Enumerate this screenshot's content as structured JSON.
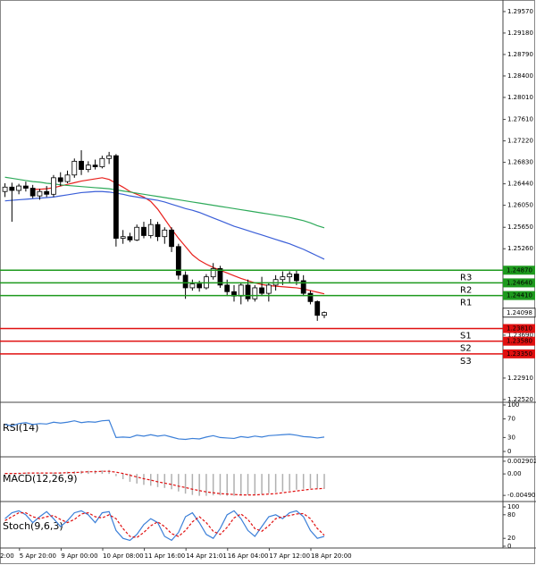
{
  "chart_data": [
    {
      "type": "candlestick",
      "ylim": [
        1.2247,
        1.2978
      ],
      "yticks": [
        {
          "value": 1.2957,
          "label": "1.29570"
        },
        {
          "value": 1.2918,
          "label": "1.29180"
        },
        {
          "value": 1.2879,
          "label": "1.28790"
        },
        {
          "value": 1.284,
          "label": "1.28400"
        },
        {
          "value": 1.2801,
          "label": "1.28010"
        },
        {
          "value": 1.2761,
          "label": "1.27610"
        },
        {
          "value": 1.2722,
          "label": "1.27220"
        },
        {
          "value": 1.2683,
          "label": "1.26830"
        },
        {
          "value": 1.2644,
          "label": "1.26440"
        },
        {
          "value": 1.2605,
          "label": "1.26050"
        },
        {
          "value": 1.2565,
          "label": "1.25650"
        },
        {
          "value": 1.2526,
          "label": "1.25260"
        },
        {
          "value": 1.2369,
          "label": "1.23690"
        },
        {
          "value": 1.2291,
          "label": "1.22910"
        },
        {
          "value": 1.2252,
          "label": "1.22520"
        }
      ],
      "x_labels": [
        "2:00",
        "5 Apr 20:00",
        "9 Apr 00:00",
        "10 Apr 08:00",
        "11 Apr 16:00",
        "14 Apr 21:01",
        "16 Apr 04:00",
        "17 Apr 12:00",
        "18 Apr 20:00"
      ],
      "open": [
        1.263,
        1.2638,
        1.2632,
        1.264,
        1.2636,
        1.2622,
        1.263,
        1.2625,
        1.2655,
        1.2648,
        1.266,
        1.2685,
        1.267,
        1.2678,
        1.2675,
        1.269,
        1.2695,
        1.2545,
        1.2548,
        1.2542,
        1.2565,
        1.255,
        1.257,
        1.2548,
        1.256,
        1.253,
        1.2478,
        1.2455,
        1.2462,
        1.2455,
        1.2475,
        1.249,
        1.246,
        1.2448,
        1.244,
        1.246,
        1.2435,
        1.2455,
        1.2445,
        1.246,
        1.247,
        1.2475,
        1.248,
        1.2468,
        1.2445,
        1.243,
        1.2405
      ],
      "high": [
        1.2645,
        1.2646,
        1.2644,
        1.2648,
        1.2642,
        1.2635,
        1.264,
        1.266,
        1.2665,
        1.2668,
        1.269,
        1.2705,
        1.2685,
        1.2688,
        1.2695,
        1.2702,
        1.2698,
        1.256,
        1.2555,
        1.257,
        1.2575,
        1.258,
        1.2575,
        1.2565,
        1.2565,
        1.2535,
        1.2485,
        1.247,
        1.2468,
        1.248,
        1.25,
        1.2495,
        1.247,
        1.246,
        1.2465,
        1.247,
        1.246,
        1.2475,
        1.2465,
        1.2478,
        1.2485,
        1.2485,
        1.2488,
        1.2478,
        1.245,
        1.2432,
        1.2412
      ],
      "low": [
        1.262,
        1.2575,
        1.2625,
        1.263,
        1.2618,
        1.2615,
        1.262,
        1.262,
        1.264,
        1.2645,
        1.2655,
        1.266,
        1.2665,
        1.267,
        1.2672,
        1.268,
        1.253,
        1.2535,
        1.2538,
        1.254,
        1.2545,
        1.2545,
        1.254,
        1.2535,
        1.252,
        1.247,
        1.2435,
        1.245,
        1.2448,
        1.2452,
        1.247,
        1.2455,
        1.244,
        1.243,
        1.2425,
        1.243,
        1.243,
        1.244,
        1.243,
        1.245,
        1.246,
        1.2465,
        1.246,
        1.244,
        1.2425,
        1.2395,
        1.24
      ],
      "close": [
        1.2638,
        1.2632,
        1.264,
        1.2636,
        1.2622,
        1.263,
        1.2625,
        1.2655,
        1.2648,
        1.266,
        1.2685,
        1.267,
        1.2678,
        1.2675,
        1.269,
        1.2695,
        1.2545,
        1.2548,
        1.2542,
        1.2565,
        1.255,
        1.257,
        1.2548,
        1.256,
        1.253,
        1.2478,
        1.2455,
        1.2462,
        1.2455,
        1.2475,
        1.249,
        1.246,
        1.2448,
        1.244,
        1.246,
        1.2435,
        1.2455,
        1.2445,
        1.246,
        1.247,
        1.2475,
        1.248,
        1.2468,
        1.2445,
        1.243,
        1.2405,
        1.241
      ],
      "up_color": "#ffffff",
      "down_color": "#000000",
      "series": [
        {
          "color": "#e8201c",
          "values": [
            null,
            null,
            null,
            null,
            1.2634,
            1.2634,
            1.2635,
            1.2637,
            1.264,
            1.2643,
            1.2646,
            1.2649,
            1.2651,
            1.2653,
            1.2655,
            1.2652,
            1.2645,
            1.2638,
            1.263,
            1.2625,
            1.262,
            1.2612,
            1.2598,
            1.258,
            1.2562,
            1.2545,
            1.253,
            1.2515,
            1.2505,
            1.2498,
            1.2492,
            1.2487,
            1.2482,
            1.2477,
            1.2472,
            1.2468,
            1.2464,
            1.2461,
            1.2459,
            1.2458,
            1.2457,
            1.2456,
            1.2455,
            1.2453,
            1.245,
            1.2447,
            1.2444
          ]
        },
        {
          "color": "#3b5fd8",
          "values": [
            1.2613,
            1.2614,
            1.2615,
            1.2616,
            1.2617,
            1.2618,
            1.2619,
            1.262,
            1.2622,
            1.2624,
            1.2626,
            1.2628,
            1.2629,
            1.263,
            1.263,
            1.2629,
            1.2627,
            1.2625,
            1.2622,
            1.262,
            1.2618,
            1.2616,
            1.2614,
            1.2611,
            1.2607,
            1.2603,
            1.2599,
            1.2596,
            1.2592,
            1.2587,
            1.2582,
            1.2577,
            1.2572,
            1.2567,
            1.2563,
            1.2559,
            1.2555,
            1.2551,
            1.2547,
            1.2543,
            1.2539,
            1.2535,
            1.253,
            1.2525,
            1.2519,
            1.2513,
            1.2507
          ]
        },
        {
          "color": "#2eaa5a",
          "values": [
            1.2656,
            1.2654,
            1.2652,
            1.265,
            1.2648,
            1.2647,
            1.2645,
            1.2644,
            1.2642,
            1.2641,
            1.264,
            1.2639,
            1.2638,
            1.2637,
            1.2636,
            1.2635,
            1.2633,
            1.2631,
            1.2629,
            1.2627,
            1.2625,
            1.2623,
            1.2621,
            1.2619,
            1.2617,
            1.2615,
            1.2613,
            1.2611,
            1.2609,
            1.2607,
            1.2605,
            1.2603,
            1.2601,
            1.2599,
            1.2597,
            1.2595,
            1.2593,
            1.2591,
            1.2589,
            1.2587,
            1.2585,
            1.2583,
            1.258,
            1.2577,
            1.2573,
            1.2568,
            1.2564
          ]
        }
      ],
      "levels": [
        {
          "label": "R3",
          "value": 1.2487,
          "value_label": "1.24870",
          "color": "#1e9a1e"
        },
        {
          "label": "R2",
          "value": 1.2464,
          "value_label": "1.24640",
          "color": "#1e9a1e"
        },
        {
          "label": "R1",
          "value": 1.2441,
          "value_label": "1.24410",
          "color": "#1e9a1e"
        },
        {
          "label": "S1",
          "value": 1.2381,
          "value_label": "1.23810",
          "color": "#e01010"
        },
        {
          "label": "S2",
          "value": 1.2358,
          "value_label": "1.23580",
          "color": "#e01010"
        },
        {
          "label": "S3",
          "value": 1.2335,
          "value_label": "1.23350",
          "color": "#e01010"
        }
      ],
      "current": {
        "value": 1.24098,
        "label": "1.24098"
      }
    },
    {
      "type": "line",
      "title": "RSI(14)",
      "ylim": [
        0,
        100
      ],
      "yticks": [
        100,
        70,
        30,
        0
      ],
      "series": [
        {
          "color": "#3b7fd8",
          "values": [
            58,
            55,
            60,
            62,
            58,
            60,
            59,
            63,
            61,
            63,
            66,
            62,
            64,
            63,
            66,
            67,
            30,
            31,
            30,
            35,
            33,
            36,
            33,
            35,
            31,
            27,
            26,
            28,
            27,
            31,
            34,
            30,
            29,
            28,
            32,
            30,
            33,
            31,
            34,
            35,
            36,
            37,
            35,
            32,
            31,
            29,
            31
          ]
        }
      ]
    },
    {
      "type": "macd",
      "title": "MACD(12,26,9)",
      "ylim": [
        -0.0061,
        0.0037
      ],
      "yticks": [
        {
          "value": 0.002902,
          "label": "0.002902"
        },
        {
          "value": 0,
          "label": "0.00"
        },
        {
          "value": -0.004906,
          "label": "-0.004906"
        }
      ],
      "values": [
        0.0002,
        0.0002,
        0.0003,
        0.0003,
        0.0002,
        0.0002,
        0.0002,
        0.0003,
        0.0004,
        0.0005,
        0.0006,
        0.0007,
        0.0007,
        0.0008,
        0.0008,
        0.0009,
        -0.0005,
        -0.0012,
        -0.0018,
        -0.0022,
        -0.0025,
        -0.0027,
        -0.003,
        -0.0032,
        -0.0035,
        -0.004,
        -0.0045,
        -0.0048,
        -0.005,
        -0.005,
        -0.0049,
        -0.0049,
        -0.005,
        -0.005,
        -0.0049,
        -0.0048,
        -0.0047,
        -0.0046,
        -0.0044,
        -0.0042,
        -0.004,
        -0.0038,
        -0.0036,
        -0.0034,
        -0.0033,
        -0.0033,
        -0.0034
      ],
      "color": "#b0b0b0",
      "series": [
        {
          "color": "#e01010",
          "values": [
            0.0001,
            0.0001,
            0.0001,
            0.0002,
            0.0002,
            0.0002,
            0.0002,
            0.0002,
            0.0002,
            0.0003,
            0.0003,
            0.0004,
            0.0005,
            0.0005,
            0.0006,
            0.0006,
            0.0004,
            0.0001,
            -0.0003,
            -0.0007,
            -0.0011,
            -0.0014,
            -0.0018,
            -0.0021,
            -0.0024,
            -0.0028,
            -0.0031,
            -0.0035,
            -0.0038,
            -0.0041,
            -0.0043,
            -0.0045,
            -0.0046,
            -0.0047,
            -0.0048,
            -0.0048,
            -0.0048,
            -0.0047,
            -0.0046,
            -0.0045,
            -0.0043,
            -0.0041,
            -0.0039,
            -0.0037,
            -0.0035,
            -0.0034,
            -0.0033
          ]
        }
      ]
    },
    {
      "type": "line",
      "title": "Stoch(9,6,3)",
      "ylim": [
        0,
        100
      ],
      "yticks": [
        100,
        80,
        20,
        0
      ],
      "series": [
        {
          "color": "#3b7fd8",
          "values": [
            70,
            85,
            90,
            80,
            60,
            75,
            88,
            70,
            50,
            65,
            85,
            90,
            80,
            60,
            85,
            88,
            40,
            20,
            15,
            30,
            55,
            70,
            60,
            25,
            15,
            35,
            75,
            85,
            60,
            30,
            20,
            45,
            80,
            90,
            70,
            40,
            25,
            50,
            75,
            80,
            70,
            85,
            90,
            75,
            40,
            20,
            25
          ]
        },
        {
          "color": "#e01010",
          "dashed": true,
          "values": [
            65,
            75,
            85,
            85,
            75,
            70,
            75,
            78,
            68,
            60,
            68,
            82,
            85,
            75,
            72,
            80,
            70,
            45,
            25,
            22,
            35,
            52,
            62,
            50,
            32,
            25,
            40,
            62,
            75,
            60,
            38,
            30,
            48,
            72,
            82,
            68,
            45,
            38,
            52,
            70,
            75,
            78,
            82,
            83,
            70,
            45,
            28
          ]
        }
      ]
    }
  ]
}
